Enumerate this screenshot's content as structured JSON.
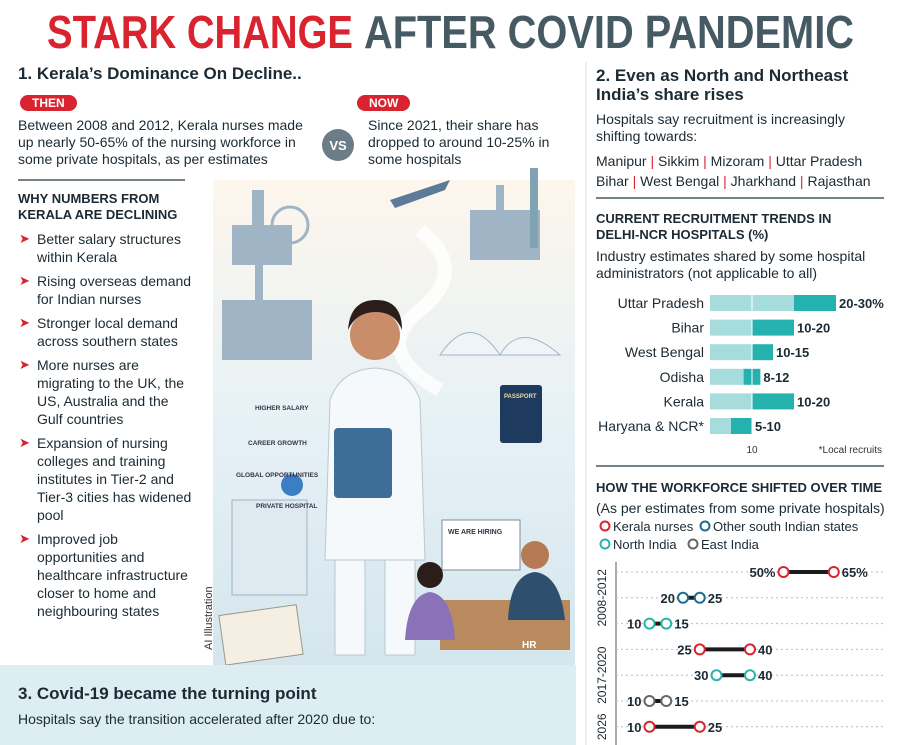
{
  "header": {
    "title_red": "STARK CHANGE",
    "title_grey": "AFTER COVID PANDEMIC"
  },
  "section1": {
    "title": "1. Kerala’s Dominance On Decline..",
    "then_tag": "THEN",
    "then_text": "Between 2008 and 2012, Kerala nurses made up nearly 50-65% of the nursing workforce in some private hospitals, as per estimates",
    "vs": "VS",
    "now_tag": "NOW",
    "now_text": "Since 2021, their share has dropped to around 10-25% in some hospitals",
    "why_title": "WHY NUMBERS FROM KERALA ARE DECLINING",
    "reasons": [
      "Better salary structures within Kerala",
      "Rising overseas demand for Indian nurses",
      "Stronger local demand across southern states",
      "More nurses are migrating to the UK, the US, Australia and the Gulf countries",
      "Expansion of nursing colleges and training institutes in Tier-2 and Tier-3 cities has widened pool",
      "Improved job opportunities and healthcare infrastructure closer to home and neighbouring states"
    ]
  },
  "illustration": {
    "credit": "AI Illustration",
    "labels": [
      "HIGHER SALARY",
      "CAREER GROWTH",
      "GLOBAL OPPORTUNITIES",
      "PRIVATE HOSPITAL",
      "WE ARE HIRING",
      "HR",
      "PASSPORT"
    ]
  },
  "section2": {
    "title": "2. Even as North and Northeast India’s share rises",
    "text": "Hospitals say recruitment is increasingly shifting towards:",
    "states": [
      "Manipur",
      "Sikkim",
      "Mizoram",
      "Uttar Pradesh",
      "Bihar",
      "West Bengal",
      "Jharkhand",
      "Rajasthan"
    ]
  },
  "section3": {
    "title": "3. Covid-19 became the turning point",
    "text": "Hospitals say the transition accelerated after 2020 due to:"
  },
  "chart_data": [
    {
      "type": "range_bar",
      "title": "CURRENT RECRUITMENT TRENDS IN DELHI-NCR HOSPITALS (%)",
      "subtitle": "Industry estimates shared by some hospital administrators (not applicable to all)",
      "categories": [
        "Uttar Pradesh",
        "Bihar",
        "West Bengal",
        "Odisha",
        "Kerala",
        "Haryana & NCR*"
      ],
      "low": [
        20,
        10,
        10,
        8,
        10,
        5
      ],
      "high": [
        30,
        20,
        15,
        12,
        20,
        10
      ],
      "value_labels": [
        "20-30%",
        "10-20",
        "10-15",
        "8-12",
        "10-20",
        "5-10"
      ],
      "xlim": [
        0,
        40
      ],
      "xticks": [
        10
      ],
      "annotation": "*Local recruits",
      "color": "#25b2ae",
      "track_color": "#a6dcdc"
    },
    {
      "type": "dumbbell",
      "title": "HOW THE WORKFORCE SHIFTED OVER TIME",
      "subtitle": "(As per estimates from some private hospitals)",
      "series": [
        {
          "name": "Kerala nurses",
          "color": "#d9232e"
        },
        {
          "name": "Other south Indian states",
          "color": "#1d6d8a"
        },
        {
          "name": "North India",
          "color": "#2bb3a8"
        },
        {
          "name": "East India",
          "color": "#666666"
        }
      ],
      "categories": [
        "2008-2012",
        "2017-2020",
        "2026"
      ],
      "rows": [
        {
          "category": 0,
          "series": 0,
          "low": 50,
          "high": 65,
          "value_labels": [
            "50%",
            "65%"
          ]
        },
        {
          "category": 0,
          "series": 1,
          "low": 20,
          "high": 25
        },
        {
          "category": 0,
          "series": 2,
          "low": 10,
          "high": 15
        },
        {
          "category": 1,
          "series": 0,
          "low": 25,
          "high": 40
        },
        {
          "category": 1,
          "series": 2,
          "low": 30,
          "high": 40
        },
        {
          "category": 1,
          "series": 3,
          "low": 10,
          "high": 15
        },
        {
          "category": 2,
          "series": 0,
          "low": 10,
          "high": 25
        }
      ],
      "xlim": [
        0,
        80
      ],
      "grid": true
    }
  ]
}
